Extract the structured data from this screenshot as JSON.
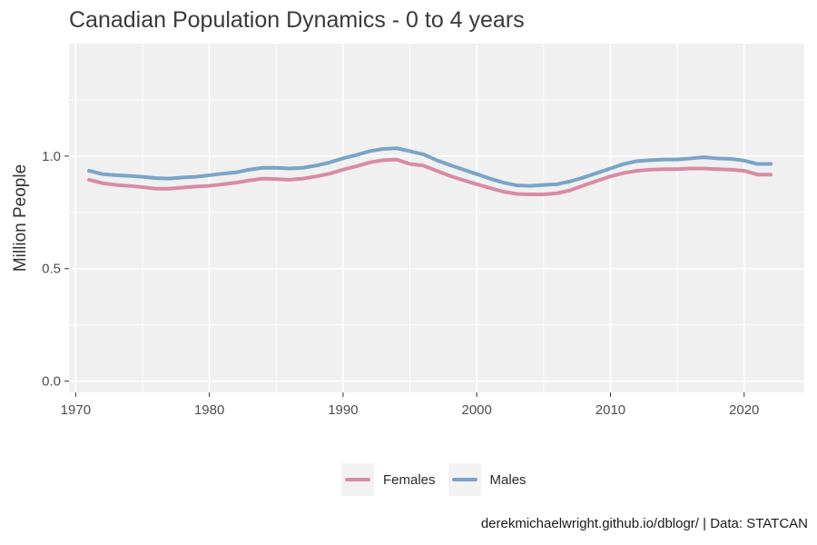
{
  "chart_data": {
    "type": "line",
    "title": "Canadian Population Dynamics - 0 to 4 years",
    "xlabel": "",
    "ylabel": "Million People",
    "caption": "derekmichaelwright.github.io/dblogr/ | Data: STATCAN",
    "xlim": [
      1969.5,
      2024.5
    ],
    "ylim": [
      -0.05,
      1.5
    ],
    "xticks": [
      1970,
      1980,
      1990,
      2000,
      2010,
      2020
    ],
    "yticks": [
      0.0,
      0.5,
      1.0
    ],
    "ytick_labels": [
      "0.0",
      "0.5",
      "1.0"
    ],
    "grid": true,
    "legend_position": "bottom",
    "x": [
      1971,
      1972,
      1973,
      1974,
      1975,
      1976,
      1977,
      1978,
      1979,
      1980,
      1981,
      1982,
      1983,
      1984,
      1985,
      1986,
      1987,
      1988,
      1989,
      1990,
      1991,
      1992,
      1993,
      1994,
      1995,
      1996,
      1997,
      1998,
      1999,
      2000,
      2001,
      2002,
      2003,
      2004,
      2005,
      2006,
      2007,
      2008,
      2009,
      2010,
      2011,
      2012,
      2013,
      2014,
      2015,
      2016,
      2017,
      2018,
      2019,
      2020,
      2021,
      2022
    ],
    "series": [
      {
        "name": "Females",
        "color": "#d88ba3",
        "values": [
          0.895,
          0.88,
          0.872,
          0.868,
          0.862,
          0.855,
          0.855,
          0.86,
          0.865,
          0.868,
          0.875,
          0.882,
          0.892,
          0.9,
          0.898,
          0.895,
          0.9,
          0.91,
          0.922,
          0.94,
          0.955,
          0.972,
          0.982,
          0.985,
          0.965,
          0.958,
          0.935,
          0.912,
          0.893,
          0.875,
          0.858,
          0.842,
          0.832,
          0.83,
          0.83,
          0.835,
          0.848,
          0.87,
          0.89,
          0.91,
          0.925,
          0.935,
          0.94,
          0.942,
          0.942,
          0.945,
          0.945,
          0.942,
          0.94,
          0.935,
          0.918,
          0.918
        ]
      },
      {
        "name": "Males",
        "color": "#7aa3c8",
        "values": [
          0.935,
          0.92,
          0.915,
          0.912,
          0.908,
          0.902,
          0.9,
          0.905,
          0.908,
          0.915,
          0.922,
          0.928,
          0.94,
          0.948,
          0.948,
          0.945,
          0.948,
          0.958,
          0.972,
          0.99,
          1.005,
          1.022,
          1.032,
          1.035,
          1.022,
          1.008,
          0.982,
          0.96,
          0.94,
          0.92,
          0.9,
          0.882,
          0.87,
          0.868,
          0.872,
          0.875,
          0.888,
          0.905,
          0.925,
          0.945,
          0.965,
          0.978,
          0.982,
          0.985,
          0.985,
          0.99,
          0.995,
          0.99,
          0.988,
          0.98,
          0.965,
          0.965
        ]
      }
    ]
  }
}
